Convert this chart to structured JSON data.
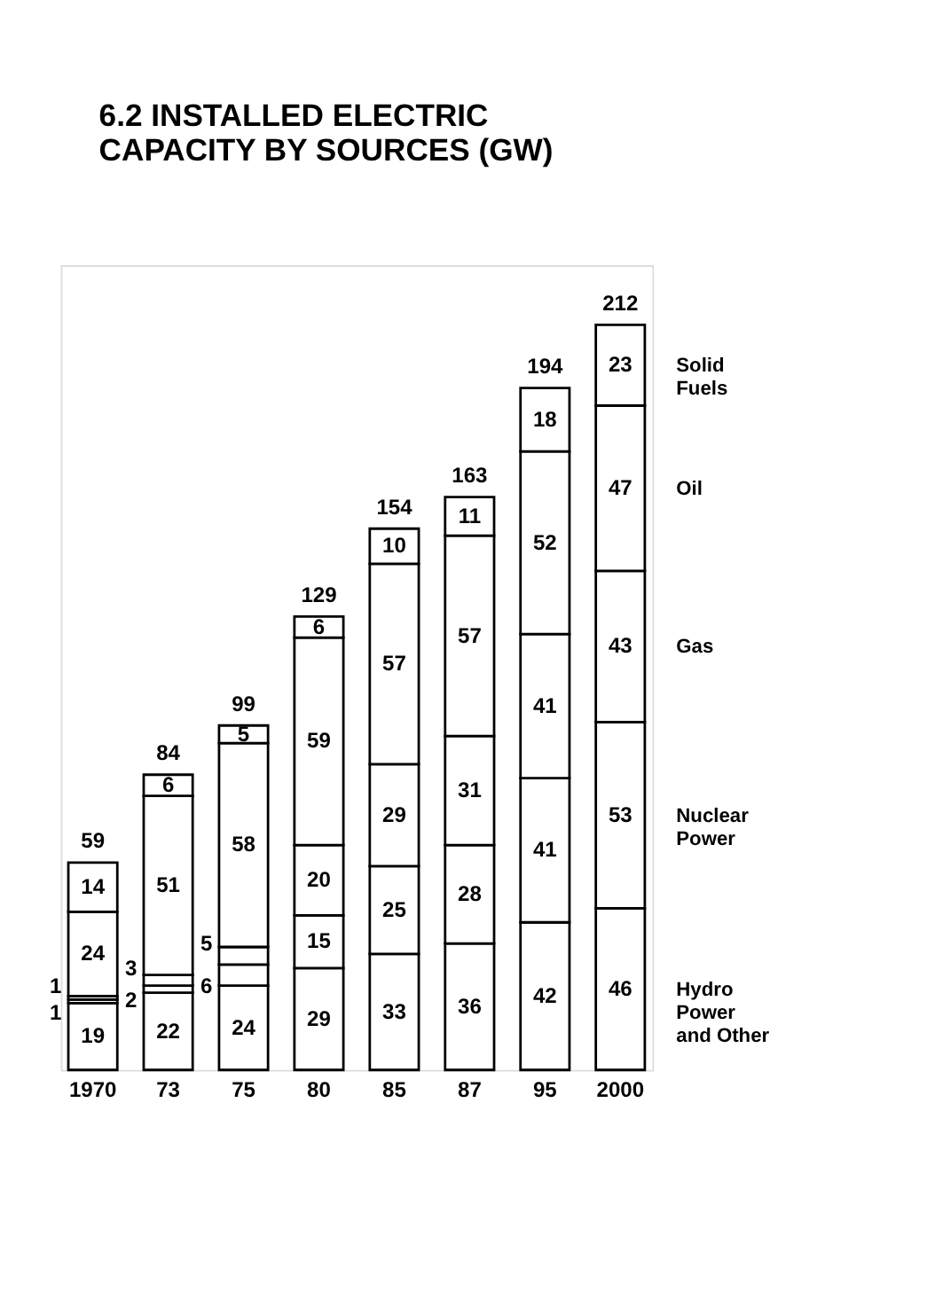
{
  "chart_data": {
    "type": "bar",
    "stacked": true,
    "data_labels": true,
    "legend": "right",
    "title": "6.2 INSTALLED ELECTRIC\nCAPACITY BY SOURCES (GW)",
    "categories": [
      "1970",
      "73",
      "75",
      "80",
      "85",
      "87",
      "95",
      "2000"
    ],
    "series": [
      {
        "name": "Hydro Power and Other",
        "color": "#ffffff",
        "values": [
          19,
          22,
          24,
          29,
          33,
          36,
          42,
          46
        ]
      },
      {
        "name": "Nuclear Power",
        "color": "#ffffff",
        "values": [
          1,
          2,
          6,
          15,
          25,
          28,
          41,
          53
        ]
      },
      {
        "name": "Gas",
        "color": "#ffffff",
        "values": [
          1,
          3,
          5,
          20,
          29,
          31,
          41,
          43
        ]
      },
      {
        "name": "Oil",
        "color": "#ffffff",
        "values": [
          24,
          51,
          58,
          59,
          57,
          57,
          52,
          47
        ]
      },
      {
        "name": "Solid Fuels",
        "color": "#ffffff",
        "values": [
          14,
          6,
          5,
          6,
          10,
          11,
          18,
          23
        ]
      }
    ],
    "totals": [
      "59",
      "84",
      "99",
      "129",
      "154",
      "163",
      "194",
      "212"
    ]
  }
}
